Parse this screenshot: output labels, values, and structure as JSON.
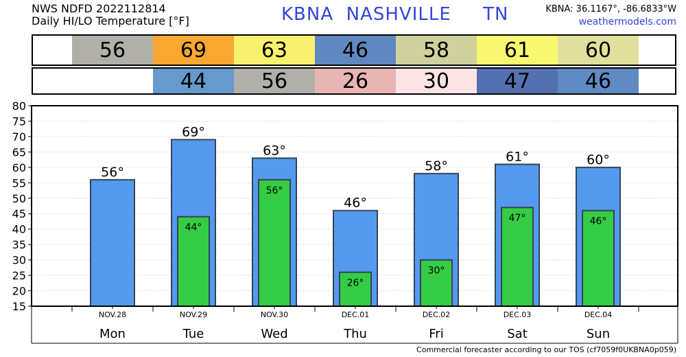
{
  "header": {
    "line1": "NWS NDFD 2022112814",
    "line2": "Daily HI/LO Temperature [°F]",
    "station": "KBNA  NASHVILLE     TN",
    "coords": "KBNA: 36.1167°, -86.6833°W",
    "site": "weathermodels.com"
  },
  "colors": {
    "hi_bar": "#5599ee",
    "lo_bar": "#33cc44",
    "bar_edge": "#334455"
  },
  "strips": {
    "hi": [
      {
        "day": 0,
        "value": "56",
        "color": "#b0b0a8"
      },
      {
        "day": 1,
        "value": "69",
        "color": "#f8a830"
      },
      {
        "day": 2,
        "value": "63",
        "color": "#f8f070"
      },
      {
        "day": 3,
        "value": "46",
        "color": "#6088c0"
      },
      {
        "day": 4,
        "value": "58",
        "color": "#d0d09c"
      },
      {
        "day": 5,
        "value": "61",
        "color": "#f8f870"
      },
      {
        "day": 6,
        "value": "60",
        "color": "#e0e09c"
      }
    ],
    "lo": [
      {
        "day": 1,
        "value": "44",
        "color": "#6699cc"
      },
      {
        "day": 2,
        "value": "56",
        "color": "#b0b0a8"
      },
      {
        "day": 3,
        "value": "26",
        "color": "#e8b4b4"
      },
      {
        "day": 4,
        "value": "30",
        "color": "#fde4e4"
      },
      {
        "day": 5,
        "value": "47",
        "color": "#5570b0"
      },
      {
        "day": 6,
        "value": "46",
        "color": "#5f8ac4"
      }
    ]
  },
  "chart_data": {
    "type": "bar",
    "categories": [
      "Mon",
      "Tue",
      "Wed",
      "Thu",
      "Fri",
      "Sat",
      "Sun"
    ],
    "dates": [
      "NOV.28",
      "NOV.29",
      "NOV.30",
      "DEC.01",
      "DEC.02",
      "DEC.03",
      "DEC.04"
    ],
    "series": [
      {
        "values": [
          56,
          69,
          63,
          46,
          58,
          61,
          60
        ]
      },
      {
        "values": [
          null,
          44,
          56,
          26,
          30,
          47,
          46
        ]
      }
    ],
    "ylim": [
      15,
      80
    ],
    "yticks": [
      15,
      20,
      25,
      30,
      35,
      40,
      45,
      50,
      55,
      60,
      65,
      70,
      75,
      80
    ],
    "grid": true
  },
  "footer": "Commercial forecaster according to our TOS (cf7059f0UKBNA0p059)"
}
